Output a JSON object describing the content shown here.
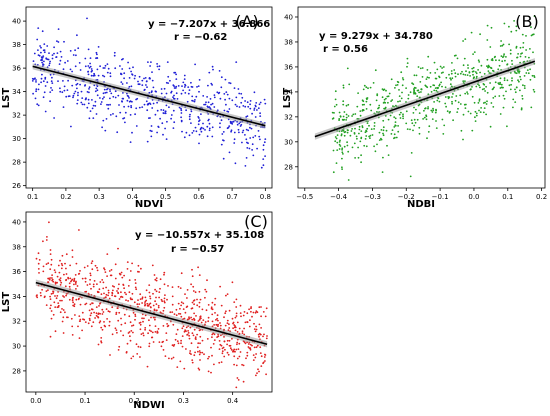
{
  "chart_data": [
    {
      "type": "scatter",
      "panel_label": "(A)",
      "xlabel": "NDVI",
      "ylabel": "LST",
      "xlim": [
        0.08,
        0.82
      ],
      "ylim": [
        25.8,
        41.2
      ],
      "xticks": [
        "0.1",
        "0.2",
        "0.3",
        "0.4",
        "0.5",
        "0.6",
        "0.7",
        "0.8"
      ],
      "yticks": [
        "26",
        "28",
        "30",
        "32",
        "34",
        "36",
        "38",
        "40"
      ],
      "point_color": "#1f1fd6",
      "equation": "y = −7.207x + 36.866",
      "r_text": "r = −0.62",
      "fit": {
        "slope": -7.207,
        "intercept": 36.866,
        "x_range": [
          0.1,
          0.8
        ]
      },
      "point_cloud": {
        "n": 700,
        "x_range": [
          0.1,
          0.8
        ],
        "noise_sd": 1.7,
        "seed": 11
      }
    },
    {
      "type": "scatter",
      "panel_label": "(B)",
      "xlabel": "NDBI",
      "ylabel": "LST",
      "xlim": [
        -0.52,
        0.21
      ],
      "ylim": [
        26.3,
        40.8
      ],
      "xticks": [
        "−0.5",
        "−0.4",
        "−0.3",
        "−0.2",
        "−0.1",
        "0.0",
        "0.1",
        "0.2"
      ],
      "yticks": [
        "28",
        "30",
        "32",
        "34",
        "36",
        "38",
        "40"
      ],
      "point_color": "#22a022",
      "equation": "y = 9.279x + 34.780",
      "r_text": "r = 0.56",
      "fit": {
        "slope": 9.279,
        "intercept": 34.78,
        "x_range": [
          -0.47,
          0.18
        ]
      },
      "point_cloud": {
        "n": 700,
        "x_range": [
          -0.42,
          0.18
        ],
        "noise_sd": 1.6,
        "seed": 23
      }
    },
    {
      "type": "scatter",
      "panel_label": "(C)",
      "xlabel": "NDWI",
      "ylabel": "LST",
      "xlim": [
        -0.02,
        0.48
      ],
      "ylim": [
        26.3,
        40.8
      ],
      "xticks": [
        "0.0",
        "0.1",
        "0.2",
        "0.3",
        "0.4"
      ],
      "yticks": [
        "28",
        "30",
        "32",
        "34",
        "36",
        "38",
        "40"
      ],
      "point_color": "#e02020",
      "equation": "y = −10.557x + 35.108",
      "r_text": "r = −0.57",
      "fit": {
        "slope": -10.557,
        "intercept": 35.108,
        "x_range": [
          0.0,
          0.47
        ]
      },
      "point_cloud": {
        "n": 900,
        "x_range": [
          0.0,
          0.47
        ],
        "noise_sd": 1.7,
        "seed": 37
      }
    }
  ]
}
